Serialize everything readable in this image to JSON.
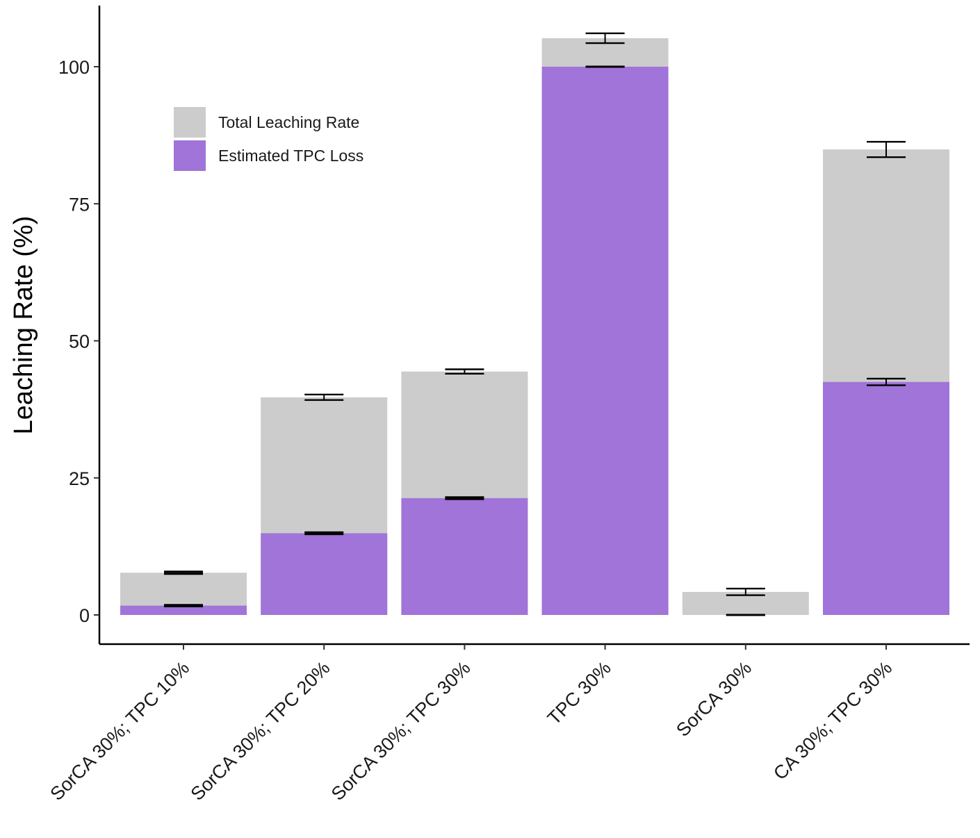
{
  "chart_data": {
    "type": "bar",
    "stacked": "overlay",
    "title": "",
    "xlabel": "",
    "ylabel": "Leaching Rate (%)",
    "ylim": [
      -5.5,
      111
    ],
    "yticks": [
      0,
      25,
      50,
      75,
      100
    ],
    "categories": [
      "SorCA 30%; TPC 10%",
      "SorCA 30%; TPC 20%",
      "SorCA 30%; TPC 30%",
      "TPC 30%",
      "SorCA 30%",
      "CA 30%; TPC 30%"
    ],
    "series": [
      {
        "name": "Total Leaching Rate",
        "color": "#cccccc",
        "values": [
          7.7,
          39.7,
          44.4,
          105.2,
          4.2,
          84.9
        ],
        "errors": [
          0.2,
          0.5,
          0.4,
          0.9,
          0.6,
          1.4
        ]
      },
      {
        "name": "Estimated TPC Loss",
        "color": "#a074d8",
        "values": [
          1.7,
          14.9,
          21.3,
          100.0,
          0.0,
          42.5
        ],
        "errors": [
          0.1,
          0.15,
          0.15,
          0.0,
          0.0,
          0.6
        ]
      }
    ],
    "legend": {
      "position": "top-left",
      "entries": [
        "Total Leaching Rate",
        "Estimated TPC Loss"
      ]
    },
    "grid": false
  }
}
